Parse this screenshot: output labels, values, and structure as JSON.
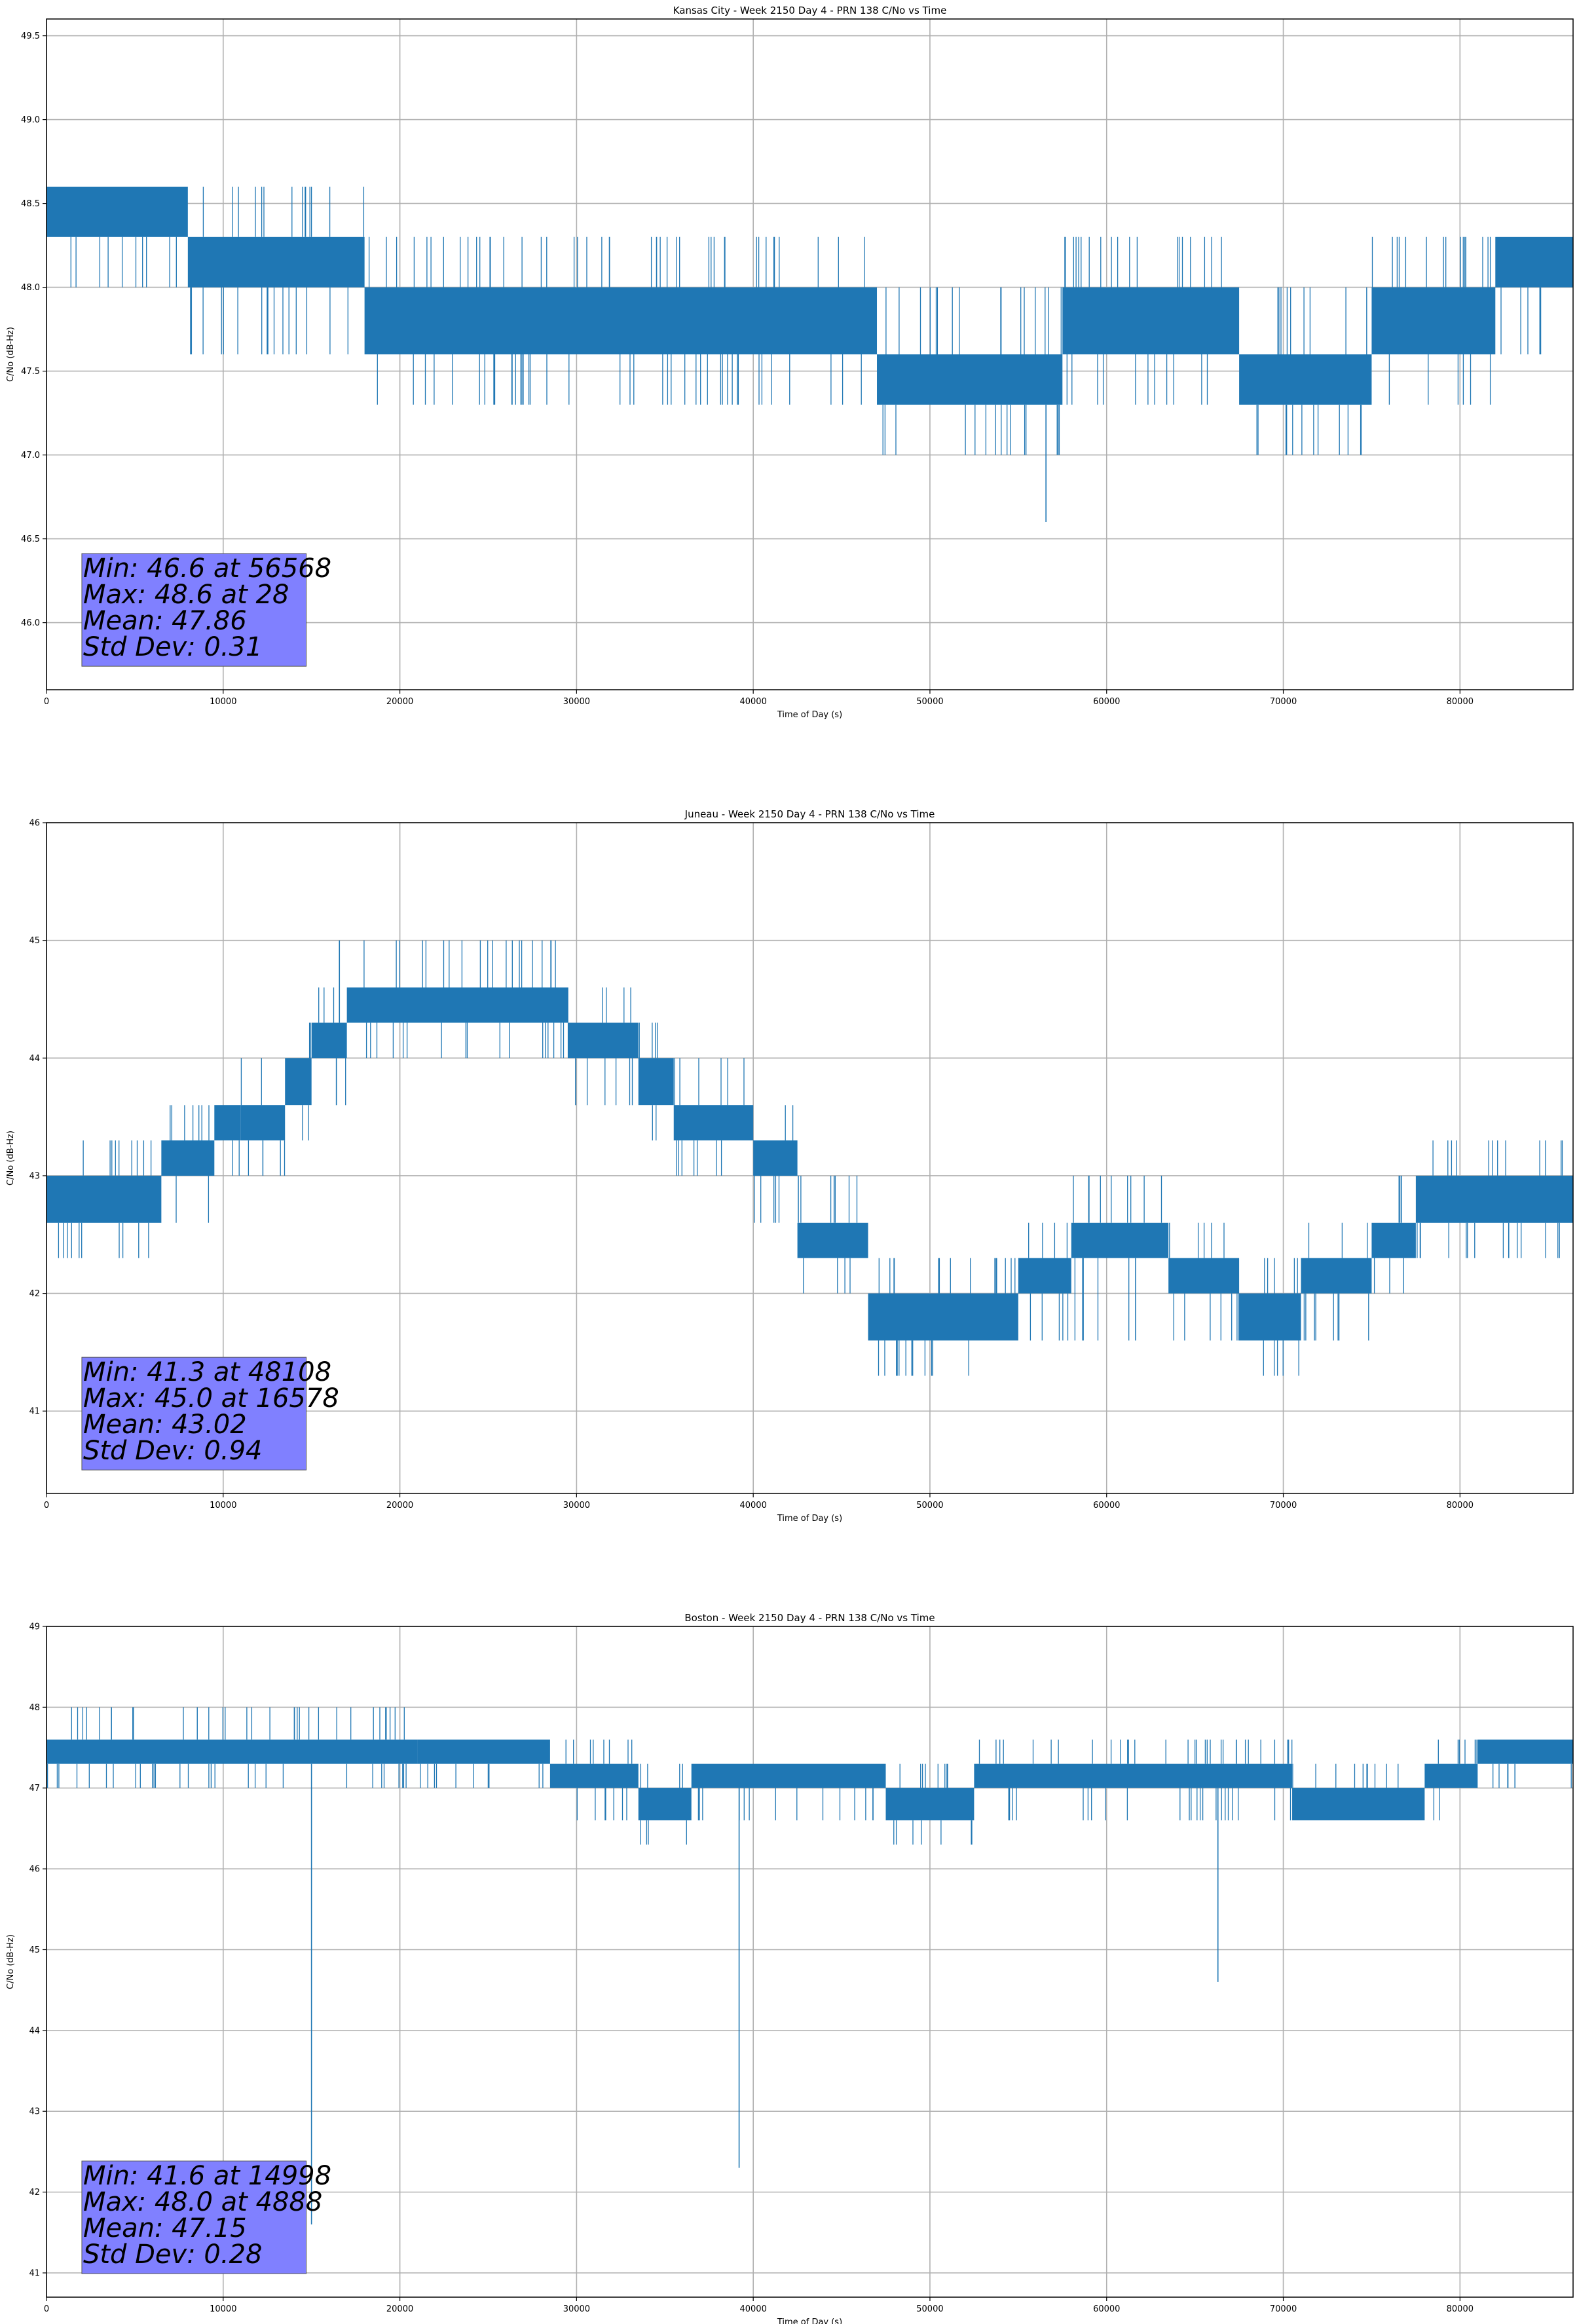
{
  "chart_data": [
    {
      "type": "line",
      "title": "Kansas City - Week 2150 Day 4 - PRN 138 C/No vs Time",
      "xlabel": "Time of Day (s)",
      "ylabel": "C/No (dB-Hz)",
      "xlim": [
        0,
        86400
      ],
      "ylim": [
        45.6,
        49.6
      ],
      "xticks": [
        0,
        10000,
        20000,
        30000,
        40000,
        50000,
        60000,
        70000,
        80000
      ],
      "yticks": [
        46.0,
        46.5,
        47.0,
        47.5,
        48.0,
        48.5,
        49.0,
        49.5
      ],
      "ytick_decimals": 1,
      "grid": true,
      "line_color": "#1f77b4",
      "band_segments": [
        {
          "x": [
            0,
            8000
          ],
          "lo": 48.3,
          "hi": 48.6,
          "spike_lo": 48.0,
          "spike_hi": 48.6
        },
        {
          "x": [
            8000,
            18000
          ],
          "lo": 48.0,
          "hi": 48.3,
          "spike_lo": 47.6,
          "spike_hi": 48.6
        },
        {
          "x": [
            18000,
            47000
          ],
          "lo": 47.6,
          "hi": 48.0,
          "spike_lo": 47.3,
          "spike_hi": 48.3
        },
        {
          "x": [
            47000,
            57500
          ],
          "lo": 47.3,
          "hi": 47.6,
          "spike_lo": 47.0,
          "spike_hi": 48.0
        },
        {
          "x": [
            57500,
            67500
          ],
          "lo": 47.6,
          "hi": 48.0,
          "spike_lo": 47.3,
          "spike_hi": 48.3
        },
        {
          "x": [
            67500,
            75000
          ],
          "lo": 47.3,
          "hi": 47.6,
          "spike_lo": 47.0,
          "spike_hi": 48.0
        },
        {
          "x": [
            75000,
            82000
          ],
          "lo": 47.6,
          "hi": 48.0,
          "spike_lo": 47.3,
          "spike_hi": 48.3
        },
        {
          "x": [
            82000,
            86400
          ],
          "lo": 48.0,
          "hi": 48.3,
          "spike_lo": 47.6,
          "spike_hi": 48.3
        }
      ],
      "extreme_points": [
        {
          "x": 56568,
          "y": 46.6
        },
        {
          "x": 28,
          "y": 48.6
        }
      ],
      "stats": {
        "min": "Min: 46.6 at 56568",
        "max": "Max: 48.6 at 28",
        "mean": "Mean: 47.86",
        "std": "Std Dev: 0.31"
      },
      "stats_box_color": "#8080ff"
    },
    {
      "type": "line",
      "title": "Juneau - Week 2150 Day 4 - PRN 138 C/No vs Time",
      "xlabel": "Time of Day (s)",
      "ylabel": "C/No (dB-Hz)",
      "xlim": [
        0,
        86400
      ],
      "ylim": [
        40.3,
        46.0
      ],
      "xticks": [
        0,
        10000,
        20000,
        30000,
        40000,
        50000,
        60000,
        70000,
        80000
      ],
      "yticks": [
        41,
        42,
        43,
        44,
        45,
        46
      ],
      "ytick_decimals": 0,
      "grid": true,
      "line_color": "#1f77b4",
      "band_segments": [
        {
          "x": [
            0,
            6500
          ],
          "lo": 42.6,
          "hi": 43.0,
          "spike_lo": 42.3,
          "spike_hi": 43.3
        },
        {
          "x": [
            6500,
            9500
          ],
          "lo": 43.0,
          "hi": 43.3,
          "spike_lo": 42.6,
          "spike_hi": 43.6
        },
        {
          "x": [
            9500,
            11000
          ],
          "lo": 43.3,
          "hi": 43.6,
          "spike_lo": 43.0,
          "spike_hi": 43.6
        },
        {
          "x": [
            11000,
            13500
          ],
          "lo": 43.3,
          "hi": 43.6,
          "spike_lo": 43.0,
          "spike_hi": 44.0
        },
        {
          "x": [
            13500,
            15000
          ],
          "lo": 43.6,
          "hi": 44.0,
          "spike_lo": 43.3,
          "spike_hi": 44.3
        },
        {
          "x": [
            15000,
            17000
          ],
          "lo": 44.0,
          "hi": 44.3,
          "spike_lo": 43.6,
          "spike_hi": 44.6
        },
        {
          "x": [
            17000,
            29500
          ],
          "lo": 44.3,
          "hi": 44.6,
          "spike_lo": 44.0,
          "spike_hi": 45.0
        },
        {
          "x": [
            29500,
            33500
          ],
          "lo": 44.0,
          "hi": 44.3,
          "spike_lo": 43.6,
          "spike_hi": 44.6
        },
        {
          "x": [
            33500,
            35500
          ],
          "lo": 43.6,
          "hi": 44.0,
          "spike_lo": 43.3,
          "spike_hi": 44.3
        },
        {
          "x": [
            35500,
            40000
          ],
          "lo": 43.3,
          "hi": 43.6,
          "spike_lo": 43.0,
          "spike_hi": 44.0
        },
        {
          "x": [
            40000,
            42500
          ],
          "lo": 43.0,
          "hi": 43.3,
          "spike_lo": 42.6,
          "spike_hi": 43.6
        },
        {
          "x": [
            42500,
            46500
          ],
          "lo": 42.3,
          "hi": 42.6,
          "spike_lo": 42.0,
          "spike_hi": 43.0
        },
        {
          "x": [
            46500,
            55000
          ],
          "lo": 41.6,
          "hi": 42.0,
          "spike_lo": 41.3,
          "spike_hi": 42.3
        },
        {
          "x": [
            55000,
            58000
          ],
          "lo": 42.0,
          "hi": 42.3,
          "spike_lo": 41.6,
          "spike_hi": 42.6
        },
        {
          "x": [
            58000,
            63500
          ],
          "lo": 42.3,
          "hi": 42.6,
          "spike_lo": 41.6,
          "spike_hi": 43.0
        },
        {
          "x": [
            63500,
            67500
          ],
          "lo": 42.0,
          "hi": 42.3,
          "spike_lo": 41.6,
          "spike_hi": 42.6
        },
        {
          "x": [
            67500,
            71000
          ],
          "lo": 41.6,
          "hi": 42.0,
          "spike_lo": 41.3,
          "spike_hi": 42.3
        },
        {
          "x": [
            71000,
            75000
          ],
          "lo": 42.0,
          "hi": 42.3,
          "spike_lo": 41.6,
          "spike_hi": 42.6
        },
        {
          "x": [
            75000,
            77500
          ],
          "lo": 42.3,
          "hi": 42.6,
          "spike_lo": 42.0,
          "spike_hi": 43.0
        },
        {
          "x": [
            77500,
            86400
          ],
          "lo": 42.6,
          "hi": 43.0,
          "spike_lo": 42.3,
          "spike_hi": 43.3
        }
      ],
      "extreme_points": [
        {
          "x": 48108,
          "y": 41.3
        },
        {
          "x": 16578,
          "y": 45.0
        }
      ],
      "stats": {
        "min": "Min: 41.3 at 48108",
        "max": "Max: 45.0 at 16578",
        "mean": "Mean: 43.02",
        "std": "Std Dev: 0.94"
      },
      "stats_box_color": "#8080ff"
    },
    {
      "type": "line",
      "title": "Boston - Week 2150 Day 4 - PRN 138 C/No vs Time",
      "xlabel": "Time of Day (s)",
      "ylabel": "C/No (dB-Hz)",
      "xlim": [
        0,
        86400
      ],
      "ylim": [
        40.7,
        49.0
      ],
      "xticks": [
        0,
        10000,
        20000,
        30000,
        40000,
        50000,
        60000,
        70000,
        80000
      ],
      "yticks": [
        41,
        42,
        43,
        44,
        45,
        46,
        47,
        48,
        49
      ],
      "ytick_decimals": 0,
      "grid": true,
      "line_color": "#1f77b4",
      "band_segments": [
        {
          "x": [
            0,
            21000
          ],
          "lo": 47.3,
          "hi": 47.6,
          "spike_lo": 47.0,
          "spike_hi": 48.0
        },
        {
          "x": [
            21000,
            28500
          ],
          "lo": 47.3,
          "hi": 47.6,
          "spike_lo": 47.0,
          "spike_hi": 47.6
        },
        {
          "x": [
            28500,
            33500
          ],
          "lo": 47.0,
          "hi": 47.3,
          "spike_lo": 46.6,
          "spike_hi": 47.6
        },
        {
          "x": [
            33500,
            36500
          ],
          "lo": 46.6,
          "hi": 47.0,
          "spike_lo": 46.3,
          "spike_hi": 47.3
        },
        {
          "x": [
            36500,
            47500
          ],
          "lo": 47.0,
          "hi": 47.3,
          "spike_lo": 46.6,
          "spike_hi": 47.3
        },
        {
          "x": [
            47500,
            52500
          ],
          "lo": 46.6,
          "hi": 47.0,
          "spike_lo": 46.3,
          "spike_hi": 47.3
        },
        {
          "x": [
            52500,
            70500
          ],
          "lo": 47.0,
          "hi": 47.3,
          "spike_lo": 46.6,
          "spike_hi": 47.6
        },
        {
          "x": [
            70500,
            78000
          ],
          "lo": 46.6,
          "hi": 47.0,
          "spike_lo": 46.6,
          "spike_hi": 47.3
        },
        {
          "x": [
            78000,
            81000
          ],
          "lo": 47.0,
          "hi": 47.3,
          "spike_lo": 46.6,
          "spike_hi": 47.6
        },
        {
          "x": [
            81000,
            86400
          ],
          "lo": 47.3,
          "hi": 47.6,
          "spike_lo": 47.0,
          "spike_hi": 47.6
        }
      ],
      "extreme_points": [
        {
          "x": 14998,
          "y": 41.6
        },
        {
          "x": 4888,
          "y": 48.0
        },
        {
          "x": 39200,
          "y": 42.3
        },
        {
          "x": 66300,
          "y": 44.6
        }
      ],
      "stats": {
        "min": "Min: 41.6 at 14998",
        "max": "Max: 48.0 at 4888",
        "mean": "Mean: 47.15",
        "std": "Std Dev: 0.28"
      },
      "stats_box_color": "#8080ff"
    }
  ]
}
